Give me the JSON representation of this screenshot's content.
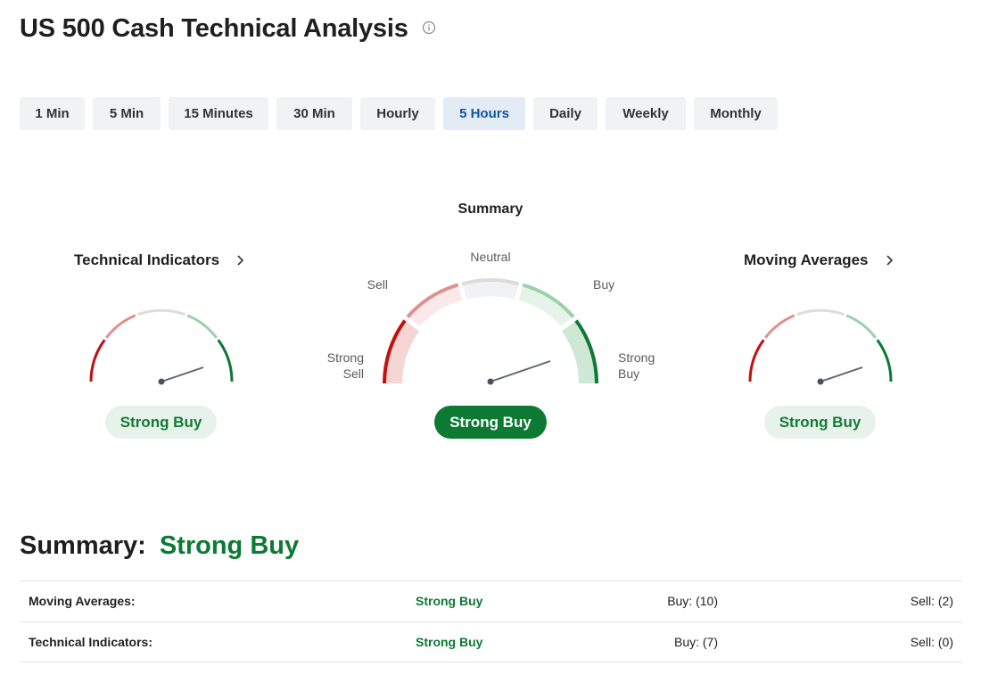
{
  "page": {
    "title": "US 500 Cash Technical Analysis"
  },
  "timeframes": [
    {
      "label": "1 Min",
      "active": false
    },
    {
      "label": "5 Min",
      "active": false
    },
    {
      "label": "15 Minutes",
      "active": false
    },
    {
      "label": "30 Min",
      "active": false
    },
    {
      "label": "Hourly",
      "active": false
    },
    {
      "label": "5 Hours",
      "active": true
    },
    {
      "label": "Daily",
      "active": false
    },
    {
      "label": "Weekly",
      "active": false
    },
    {
      "label": "Monthly",
      "active": false
    }
  ],
  "summary_gauge": {
    "title": "Summary",
    "labels": {
      "strong_sell": "Strong Sell",
      "sell": "Sell",
      "neutral": "Neutral",
      "buy": "Buy",
      "strong_buy": "Strong Buy"
    },
    "signal": "Strong Buy"
  },
  "technical_indicators": {
    "title": "Technical Indicators",
    "signal": "Strong Buy"
  },
  "moving_averages": {
    "title": "Moving Averages",
    "signal": "Strong Buy"
  },
  "summary": {
    "label": "Summary:",
    "value": "Strong Buy",
    "rows": [
      {
        "name": "Moving Averages:",
        "signal": "Strong Buy",
        "buy": "Buy: (10)",
        "sell": "Sell: (2)"
      },
      {
        "name": "Technical Indicators:",
        "signal": "Strong Buy",
        "buy": "Buy: (7)",
        "sell": "Sell: (0)"
      }
    ]
  },
  "colors": {
    "strong_buy": "#0c7a33",
    "buy_light": "#9bd1ab",
    "neutral": "#dcdcdc",
    "sell_light": "#e08f8f",
    "strong_sell": "#c40f0f",
    "active_tab_text": "#1256a0",
    "active_tab_bg": "#e3ebf5"
  }
}
